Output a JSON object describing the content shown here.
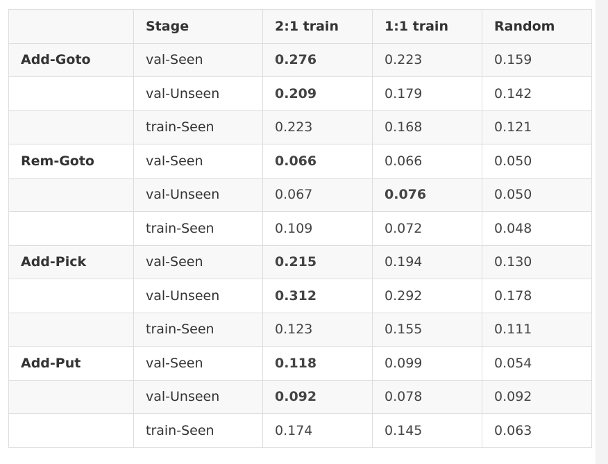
{
  "table": {
    "headers": [
      "",
      "Stage",
      "2:1 train",
      "1:1 train",
      "Random"
    ],
    "rows": [
      {
        "group": "Add-Goto",
        "stage": "val-Seen",
        "v21": "0.276",
        "v11": "0.223",
        "rand": "0.159",
        "best": "v21"
      },
      {
        "group": "",
        "stage": "val-Unseen",
        "v21": "0.209",
        "v11": "0.179",
        "rand": "0.142",
        "best": "v21"
      },
      {
        "group": "",
        "stage": "train-Seen",
        "v21": "0.223",
        "v11": "0.168",
        "rand": "0.121",
        "best": ""
      },
      {
        "group": "Rem-Goto",
        "stage": "val-Seen",
        "v21": "0.066",
        "v11": "0.066",
        "rand": "0.050",
        "best": "v21"
      },
      {
        "group": "",
        "stage": "val-Unseen",
        "v21": "0.067",
        "v11": "0.076",
        "rand": "0.050",
        "best": "v11"
      },
      {
        "group": "",
        "stage": "train-Seen",
        "v21": "0.109",
        "v11": "0.072",
        "rand": "0.048",
        "best": ""
      },
      {
        "group": "Add-Pick",
        "stage": "val-Seen",
        "v21": "0.215",
        "v11": "0.194",
        "rand": "0.130",
        "best": "v21"
      },
      {
        "group": "",
        "stage": "val-Unseen",
        "v21": "0.312",
        "v11": "0.292",
        "rand": "0.178",
        "best": "v21"
      },
      {
        "group": "",
        "stage": "train-Seen",
        "v21": "0.123",
        "v11": "0.155",
        "rand": "0.111",
        "best": ""
      },
      {
        "group": "Add-Put",
        "stage": "val-Seen",
        "v21": "0.118",
        "v11": "0.099",
        "rand": "0.054",
        "best": "v21"
      },
      {
        "group": "",
        "stage": "val-Unseen",
        "v21": "0.092",
        "v11": "0.078",
        "rand": "0.092",
        "best": "v21"
      },
      {
        "group": "",
        "stage": "train-Seen",
        "v21": "0.174",
        "v11": "0.145",
        "rand": "0.063",
        "best": ""
      }
    ]
  }
}
